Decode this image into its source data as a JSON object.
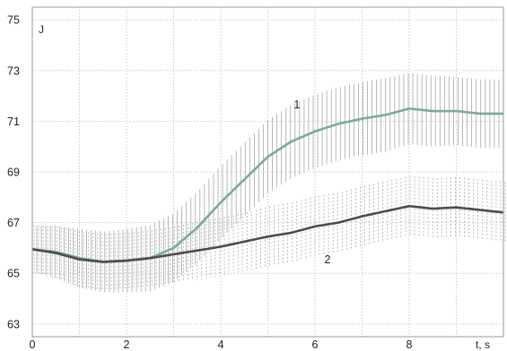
{
  "chart_data": {
    "type": "line",
    "ylabel": "J",
    "xlabel": "t, s",
    "xlim": [
      0,
      10
    ],
    "ylim": [
      62.5,
      75.5
    ],
    "x_ticks": [
      "0",
      "2",
      "4",
      "6",
      "8"
    ],
    "y_ticks": [
      "63",
      "65",
      "67",
      "69",
      "71",
      "73",
      "75"
    ],
    "grid": true,
    "colors": {
      "series_1": "#7aaa9e",
      "series_2": "#4b4a55",
      "error_bars": "#a8a8a8"
    },
    "series": [
      {
        "name": "1",
        "x": [
          0,
          0.5,
          1,
          1.5,
          2,
          2.5,
          3,
          3.5,
          4,
          4.5,
          5,
          5.5,
          6,
          6.5,
          7,
          7.5,
          8,
          8.5,
          9,
          9.5,
          10
        ],
        "values": [
          65.95,
          65.85,
          65.6,
          65.45,
          65.5,
          65.6,
          66.0,
          66.8,
          67.8,
          68.7,
          69.6,
          70.2,
          70.6,
          70.9,
          71.1,
          71.25,
          71.5,
          71.4,
          71.4,
          71.3,
          71.3
        ],
        "error": [
          0.9,
          1.05,
          1.15,
          1.2,
          1.25,
          1.3,
          1.35,
          1.4,
          1.45,
          1.45,
          1.45,
          1.45,
          1.45,
          1.45,
          1.45,
          1.45,
          1.4,
          1.4,
          1.35,
          1.35,
          1.35
        ]
      },
      {
        "name": "2",
        "x": [
          0,
          0.5,
          1,
          1.5,
          2,
          2.5,
          3,
          3.5,
          4,
          4.5,
          5,
          5.5,
          6,
          6.5,
          7,
          7.5,
          8,
          8.5,
          9,
          9.5,
          10
        ],
        "values": [
          65.95,
          65.8,
          65.55,
          65.45,
          65.5,
          65.6,
          65.75,
          65.9,
          66.05,
          66.25,
          66.45,
          66.6,
          66.85,
          67.0,
          67.25,
          67.45,
          67.65,
          67.55,
          67.6,
          67.5,
          67.4
        ],
        "error": [
          0.95,
          1.05,
          1.1,
          1.1,
          1.1,
          1.1,
          1.1,
          1.15,
          1.15,
          1.15,
          1.2,
          1.2,
          1.2,
          1.2,
          1.2,
          1.2,
          1.2,
          1.2,
          1.2,
          1.2,
          1.2
        ]
      }
    ]
  }
}
